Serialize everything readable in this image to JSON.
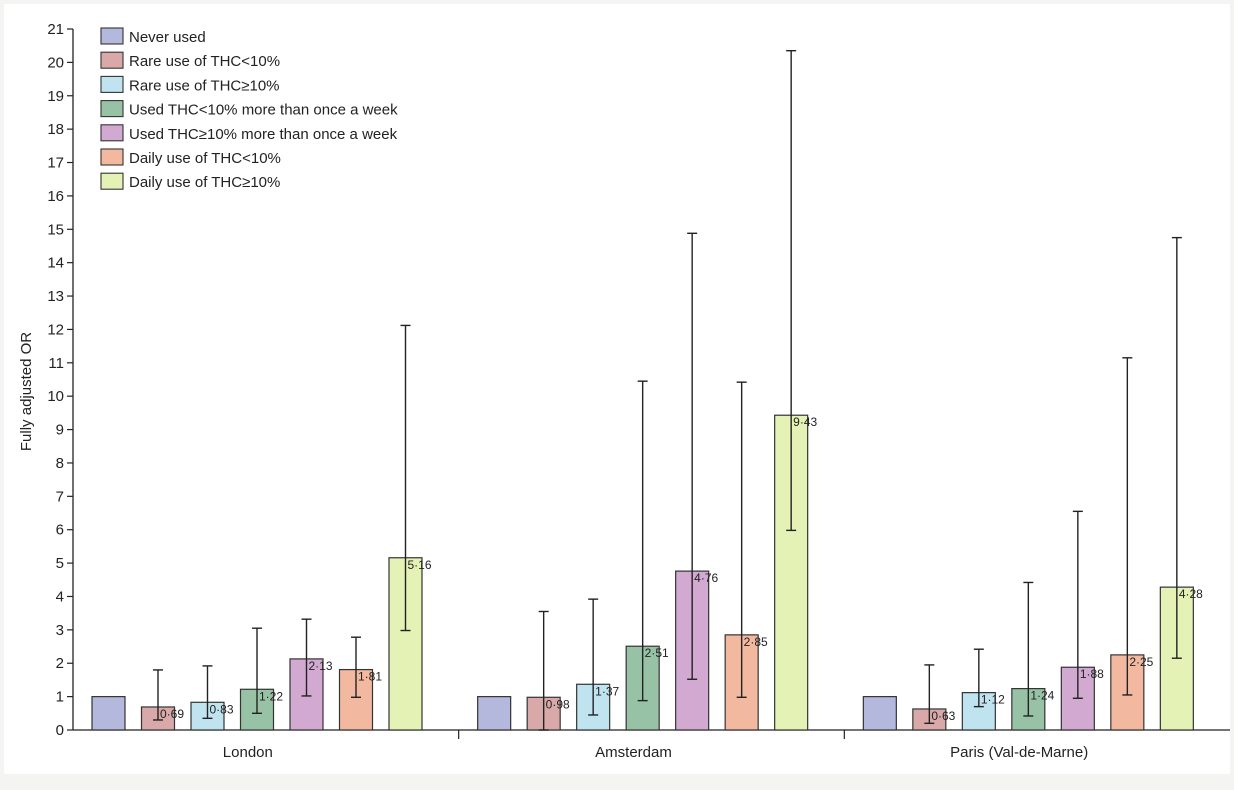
{
  "chart_data": {
    "type": "bar",
    "title": "",
    "xlabel": "",
    "ylabel": "Fully adjusted OR",
    "ylim": [
      0,
      21
    ],
    "yticks": [
      0,
      1,
      2,
      3,
      4,
      5,
      6,
      7,
      8,
      9,
      10,
      11,
      12,
      13,
      14,
      15,
      16,
      17,
      18,
      19,
      20,
      21
    ],
    "categories": [
      "London",
      "Amsterdam",
      "Paris (Val-de-Marne)"
    ],
    "legend_position": "top-left",
    "grid": false,
    "series": [
      {
        "name": "Never used",
        "color": "#b4b8dc",
        "values": [
          1,
          1,
          1
        ],
        "labels": [
          null,
          null,
          null
        ],
        "ci_low": [
          null,
          null,
          null
        ],
        "ci_high": [
          null,
          null,
          null
        ]
      },
      {
        "name": "Rare use of THC<10%",
        "color": "#d9a9a9",
        "values": [
          0.69,
          0.98,
          0.63
        ],
        "labels": [
          "0·69",
          "0·98",
          "0·63"
        ],
        "ci_low": [
          0.3,
          0.0,
          0.2
        ],
        "ci_high": [
          1.8,
          3.55,
          1.95
        ]
      },
      {
        "name": "Rare use of THC≥10%",
        "color": "#bfe3ef",
        "values": [
          0.83,
          1.37,
          1.12
        ],
        "labels": [
          "0·83",
          "1·37",
          "1·12"
        ],
        "ci_low": [
          0.35,
          0.45,
          0.7
        ],
        "ci_high": [
          1.92,
          3.92,
          2.42
        ]
      },
      {
        "name": "Used THC<10% more than once a week",
        "color": "#98c2a5",
        "values": [
          1.22,
          2.51,
          1.24
        ],
        "labels": [
          "1·22",
          "2·51",
          "1·24"
        ],
        "ci_low": [
          0.5,
          0.88,
          0.42
        ],
        "ci_high": [
          3.05,
          10.45,
          4.42
        ]
      },
      {
        "name": "Used THC≥10% more than once a week",
        "color": "#d1a9d1",
        "values": [
          2.13,
          4.76,
          1.88
        ],
        "labels": [
          "2·13",
          "4·76",
          "1·88"
        ],
        "ci_low": [
          1.02,
          1.52,
          0.95
        ],
        "ci_high": [
          3.32,
          14.88,
          6.55
        ]
      },
      {
        "name": "Daily use of THC<10%",
        "color": "#f3b9a0",
        "values": [
          1.81,
          2.85,
          2.25
        ],
        "labels": [
          "1·81",
          "2·85",
          "2·25"
        ],
        "ci_low": [
          0.98,
          0.98,
          1.05
        ],
        "ci_high": [
          2.78,
          10.42,
          11.15
        ]
      },
      {
        "name": "Daily use of THC≥10%",
        "color": "#e4f2b6",
        "values": [
          5.16,
          9.43,
          4.28
        ],
        "labels": [
          "5·16",
          "9·43",
          "4·28"
        ],
        "ci_low": [
          2.98,
          5.98,
          2.15
        ],
        "ci_high": [
          12.12,
          20.35,
          14.75
        ]
      }
    ]
  }
}
